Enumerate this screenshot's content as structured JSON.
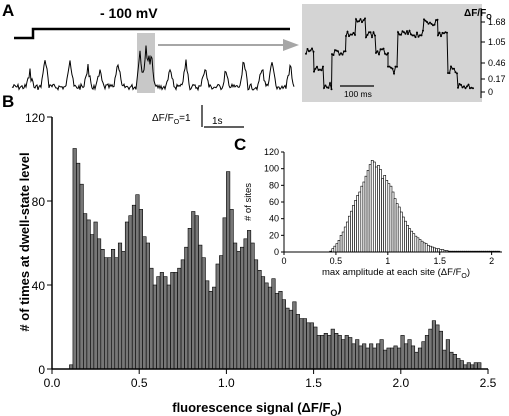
{
  "panel_a": {
    "letter": "A",
    "voltage_label": "- 100 mV",
    "scalebar_y_label": "ΔF/F",
    "scalebar_y_sub": "O",
    "scalebar_y_value": "=1",
    "scalebar_x_label": "1s",
    "inset": {
      "ylabel": "ΔF/F",
      "ylabel_sub": "O",
      "levels": [
        "1.68",
        "1.05",
        "0.46",
        "0.17",
        "0"
      ],
      "scalebar_label": "100 ms",
      "background": "#d4d4d4"
    }
  },
  "panel_b": {
    "letter": "B",
    "xlabel": "fluorescence signal (ΔF/F",
    "xlabel_sub": "O",
    "xlabel_end": ")",
    "ylabel": "# of times at dwell-state level"
  },
  "panel_c": {
    "letter": "C",
    "xlabel": "max amplitude at each site (ΔF/F",
    "xlabel_sub": "O",
    "xlabel_end": ")",
    "ylabel": "# of sites"
  },
  "chart_data": [
    {
      "type": "bar",
      "panel": "B",
      "bin_width": 0.02,
      "x_start": 0.1,
      "xlim": [
        0,
        2.5
      ],
      "ylim": [
        0,
        120
      ],
      "xticks": [
        "0.0",
        "0.5",
        "1.0",
        "1.5",
        "2.0",
        "2.5"
      ],
      "yticks": [
        "0",
        "40",
        "80",
        "120"
      ],
      "bar_color": "#777777",
      "values": [
        2,
        105,
        98,
        88,
        74,
        71,
        64,
        70,
        62,
        57,
        53,
        53,
        57,
        53,
        60,
        56,
        70,
        73,
        78,
        83,
        76,
        63,
        60,
        48,
        40,
        44,
        46,
        44,
        40,
        46,
        46,
        48,
        52,
        58,
        67,
        75,
        73,
        59,
        53,
        42,
        37,
        39,
        50,
        54,
        72,
        94,
        76,
        60,
        56,
        58,
        62,
        66,
        60,
        52,
        47,
        44,
        41,
        39,
        43,
        36,
        37,
        33,
        29,
        28,
        32,
        26,
        24,
        24,
        22,
        22,
        20,
        16,
        16,
        17,
        16,
        19,
        17,
        16,
        14,
        16,
        15,
        12,
        14,
        11,
        12,
        10,
        12,
        10,
        12,
        14,
        9,
        10,
        10,
        11,
        10,
        16,
        12,
        14,
        11,
        8,
        10,
        13,
        16,
        19,
        23,
        21,
        18,
        9,
        14,
        8,
        7,
        5,
        4,
        2,
        3,
        2,
        3,
        3
      ]
    },
    {
      "type": "bar",
      "panel": "C",
      "bin_width": 0.02,
      "x_start": 0.44,
      "xlim": [
        0,
        2.1
      ],
      "ylim": [
        0,
        120
      ],
      "xticks": [
        "0",
        "0.5",
        "1",
        "1.5",
        "2"
      ],
      "yticks": [
        "0",
        "20",
        "40",
        "60",
        "80",
        "100",
        "120"
      ],
      "bar_color": "#ffffff",
      "values": [
        1,
        4,
        7,
        10,
        14,
        20,
        24,
        30,
        36,
        43,
        49,
        56,
        62,
        68,
        72,
        79,
        84,
        91,
        98,
        105,
        110,
        108,
        102,
        104,
        99,
        88,
        92,
        86,
        82,
        79,
        72,
        64,
        58,
        54,
        48,
        42,
        37,
        32,
        28,
        25,
        22,
        19,
        17,
        15,
        13,
        11,
        10,
        8,
        7,
        6,
        5,
        4,
        4,
        3,
        3,
        2,
        2,
        1,
        1,
        1,
        1,
        1,
        1,
        1,
        1,
        1,
        1,
        1,
        1,
        1,
        1,
        1,
        1,
        1,
        1,
        1,
        1,
        1,
        1,
        1,
        1,
        1
      ]
    }
  ]
}
